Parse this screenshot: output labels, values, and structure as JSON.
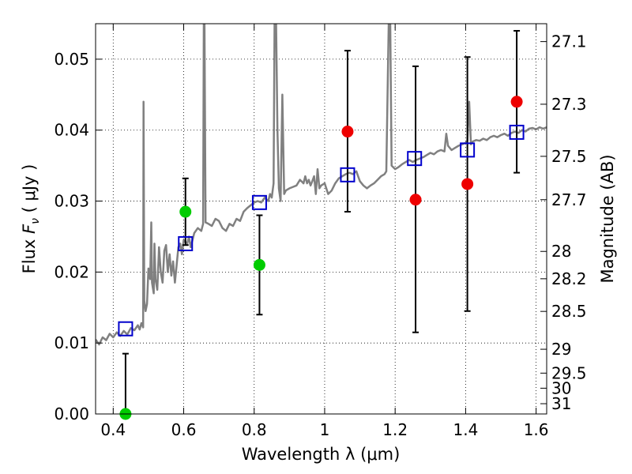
{
  "chart_data": {
    "type": "scatter",
    "xlabel": "Wavelength  λ (μm)",
    "ylabel_left": {
      "prefix": "Flux  ",
      "symbol": "F",
      "subscript": "ν",
      "suffix": "  ( μJy )"
    },
    "ylabel_right": "Magnitude (AB)",
    "xlim": [
      0.35,
      1.63
    ],
    "ylim": [
      0.0,
      0.055
    ],
    "grid": true,
    "x_ticks": [
      {
        "value": 0.4,
        "label": "0.4"
      },
      {
        "value": 0.6,
        "label": "0.6"
      },
      {
        "value": 0.8,
        "label": "0.8"
      },
      {
        "value": 1.0,
        "label": "1"
      },
      {
        "value": 1.2,
        "label": "1.2"
      },
      {
        "value": 1.4,
        "label": "1.4"
      },
      {
        "value": 1.6,
        "label": "1.6"
      }
    ],
    "y_ticks": [
      {
        "value": 0.0,
        "label": "0.00"
      },
      {
        "value": 0.01,
        "label": "0.01"
      },
      {
        "value": 0.02,
        "label": "0.02"
      },
      {
        "value": 0.03,
        "label": "0.03"
      },
      {
        "value": 0.04,
        "label": "0.04"
      },
      {
        "value": 0.05,
        "label": "0.05"
      }
    ],
    "mag_ticks": [
      {
        "value": 27.1,
        "label": "27.1"
      },
      {
        "value": 27.3,
        "label": "27.3"
      },
      {
        "value": 27.5,
        "label": "27.5"
      },
      {
        "value": 27.7,
        "label": "27.7"
      },
      {
        "value": 28.0,
        "label": "28"
      },
      {
        "value": 28.2,
        "label": "28.2"
      },
      {
        "value": 28.5,
        "label": "28.5"
      },
      {
        "value": 29.0,
        "label": "29"
      },
      {
        "value": 29.5,
        "label": "29.5"
      },
      {
        "value": 30.0,
        "label": "30"
      },
      {
        "value": 31.0,
        "label": "31"
      }
    ],
    "series": [
      {
        "color": "#808080",
        "style": "line",
        "points": [
          [
            0.35,
            0.0105
          ],
          [
            0.36,
            0.0098
          ],
          [
            0.37,
            0.0108
          ],
          [
            0.38,
            0.0104
          ],
          [
            0.39,
            0.0113
          ],
          [
            0.4,
            0.0108
          ],
          [
            0.41,
            0.0115
          ],
          [
            0.42,
            0.011
          ],
          [
            0.43,
            0.0117
          ],
          [
            0.44,
            0.0112
          ],
          [
            0.45,
            0.0121
          ],
          [
            0.46,
            0.0118
          ],
          [
            0.47,
            0.0125
          ],
          [
            0.475,
            0.0119
          ],
          [
            0.48,
            0.0128
          ],
          [
            0.485,
            0.0122
          ],
          [
            0.486,
            0.044
          ],
          [
            0.488,
            0.016
          ],
          [
            0.492,
            0.0145
          ],
          [
            0.496,
            0.0155
          ],
          [
            0.5,
            0.0205
          ],
          [
            0.505,
            0.019
          ],
          [
            0.508,
            0.027
          ],
          [
            0.51,
            0.0185
          ],
          [
            0.515,
            0.017
          ],
          [
            0.517,
            0.024
          ],
          [
            0.52,
            0.019
          ],
          [
            0.525,
            0.0175
          ],
          [
            0.53,
            0.0235
          ],
          [
            0.535,
            0.02
          ],
          [
            0.54,
            0.0185
          ],
          [
            0.545,
            0.023
          ],
          [
            0.55,
            0.0238
          ],
          [
            0.555,
            0.02
          ],
          [
            0.56,
            0.0225
          ],
          [
            0.565,
            0.0195
          ],
          [
            0.57,
            0.0215
          ],
          [
            0.575,
            0.0185
          ],
          [
            0.58,
            0.021
          ],
          [
            0.585,
            0.0235
          ],
          [
            0.59,
            0.024
          ],
          [
            0.595,
            0.0225
          ],
          [
            0.6,
            0.0245
          ],
          [
            0.61,
            0.024
          ],
          [
            0.615,
            0.025
          ],
          [
            0.62,
            0.0235
          ],
          [
            0.63,
            0.0255
          ],
          [
            0.64,
            0.0262
          ],
          [
            0.65,
            0.0258
          ],
          [
            0.655,
            0.0268
          ],
          [
            0.657,
            0.056
          ],
          [
            0.659,
            0.056
          ],
          [
            0.662,
            0.027
          ],
          [
            0.67,
            0.0268
          ],
          [
            0.68,
            0.0265
          ],
          [
            0.69,
            0.0275
          ],
          [
            0.7,
            0.0272
          ],
          [
            0.71,
            0.0262
          ],
          [
            0.72,
            0.0258
          ],
          [
            0.73,
            0.0268
          ],
          [
            0.74,
            0.0265
          ],
          [
            0.75,
            0.0275
          ],
          [
            0.76,
            0.0272
          ],
          [
            0.77,
            0.0285
          ],
          [
            0.78,
            0.029
          ],
          [
            0.79,
            0.0294
          ],
          [
            0.8,
            0.0298
          ],
          [
            0.81,
            0.03
          ],
          [
            0.82,
            0.0298
          ],
          [
            0.83,
            0.0305
          ],
          [
            0.84,
            0.03
          ],
          [
            0.845,
            0.031
          ],
          [
            0.85,
            0.0305
          ],
          [
            0.855,
            0.0325
          ],
          [
            0.858,
            0.056
          ],
          [
            0.862,
            0.056
          ],
          [
            0.866,
            0.04
          ],
          [
            0.87,
            0.0318
          ],
          [
            0.875,
            0.03
          ],
          [
            0.88,
            0.045
          ],
          [
            0.885,
            0.031
          ],
          [
            0.89,
            0.0315
          ],
          [
            0.9,
            0.0318
          ],
          [
            0.91,
            0.032
          ],
          [
            0.92,
            0.0322
          ],
          [
            0.93,
            0.033
          ],
          [
            0.94,
            0.0325
          ],
          [
            0.945,
            0.0335
          ],
          [
            0.95,
            0.0325
          ],
          [
            0.955,
            0.033
          ],
          [
            0.96,
            0.0322
          ],
          [
            0.965,
            0.0328
          ],
          [
            0.97,
            0.0335
          ],
          [
            0.975,
            0.031
          ],
          [
            0.98,
            0.0345
          ],
          [
            0.985,
            0.0318
          ],
          [
            0.99,
            0.0322
          ],
          [
            1.0,
            0.0325
          ],
          [
            1.01,
            0.031
          ],
          [
            1.02,
            0.0315
          ],
          [
            1.03,
            0.0325
          ],
          [
            1.04,
            0.0332
          ],
          [
            1.05,
            0.0335
          ],
          [
            1.06,
            0.0338
          ],
          [
            1.07,
            0.034
          ],
          [
            1.08,
            0.0338
          ],
          [
            1.09,
            0.0342
          ],
          [
            1.095,
            0.0335
          ],
          [
            1.1,
            0.0328
          ],
          [
            1.11,
            0.0322
          ],
          [
            1.12,
            0.0318
          ],
          [
            1.13,
            0.0322
          ],
          [
            1.14,
            0.0325
          ],
          [
            1.15,
            0.033
          ],
          [
            1.16,
            0.0335
          ],
          [
            1.17,
            0.0338
          ],
          [
            1.175,
            0.0342
          ],
          [
            1.18,
            0.05
          ],
          [
            1.182,
            0.056
          ],
          [
            1.186,
            0.056
          ],
          [
            1.19,
            0.035
          ],
          [
            1.2,
            0.0345
          ],
          [
            1.21,
            0.0348
          ],
          [
            1.22,
            0.0352
          ],
          [
            1.23,
            0.0355
          ],
          [
            1.24,
            0.0358
          ],
          [
            1.25,
            0.0355
          ],
          [
            1.26,
            0.0358
          ],
          [
            1.27,
            0.036
          ],
          [
            1.28,
            0.0362
          ],
          [
            1.29,
            0.0365
          ],
          [
            1.3,
            0.0368
          ],
          [
            1.31,
            0.0366
          ],
          [
            1.32,
            0.037
          ],
          [
            1.33,
            0.0372
          ],
          [
            1.34,
            0.037
          ],
          [
            1.345,
            0.0395
          ],
          [
            1.35,
            0.0378
          ],
          [
            1.36,
            0.0372
          ],
          [
            1.37,
            0.0375
          ],
          [
            1.38,
            0.0378
          ],
          [
            1.39,
            0.038
          ],
          [
            1.4,
            0.0382
          ],
          [
            1.405,
            0.0385
          ],
          [
            1.41,
            0.044
          ],
          [
            1.415,
            0.038
          ],
          [
            1.42,
            0.0384
          ],
          [
            1.43,
            0.0386
          ],
          [
            1.44,
            0.0385
          ],
          [
            1.45,
            0.0388
          ],
          [
            1.46,
            0.0386
          ],
          [
            1.47,
            0.039
          ],
          [
            1.48,
            0.0392
          ],
          [
            1.49,
            0.039
          ],
          [
            1.5,
            0.0393
          ],
          [
            1.51,
            0.0395
          ],
          [
            1.52,
            0.0392
          ],
          [
            1.53,
            0.0396
          ],
          [
            1.54,
            0.0398
          ],
          [
            1.55,
            0.0396
          ],
          [
            1.56,
            0.04
          ],
          [
            1.57,
            0.0398
          ],
          [
            1.58,
            0.0402
          ],
          [
            1.59,
            0.0403
          ],
          [
            1.6,
            0.0401
          ],
          [
            1.61,
            0.0404
          ],
          [
            1.62,
            0.0402
          ],
          [
            1.63,
            0.0404
          ]
        ]
      },
      {
        "color": "#0000cc",
        "style": "open-square",
        "points": [
          [
            0.435,
            0.012
          ],
          [
            0.605,
            0.024
          ],
          [
            0.815,
            0.0298
          ],
          [
            1.065,
            0.0337
          ],
          [
            1.255,
            0.036
          ],
          [
            1.405,
            0.0372
          ],
          [
            1.545,
            0.0397
          ]
        ]
      },
      {
        "color": "#00cc00",
        "style": "filled-circle",
        "points": [
          [
            0.435,
            0.0
          ],
          [
            0.605,
            0.0285
          ],
          [
            0.815,
            0.021
          ]
        ]
      },
      {
        "color": "#ee0000",
        "style": "filled-circle",
        "points": [
          [
            1.065,
            0.0398
          ],
          [
            1.258,
            0.0302
          ],
          [
            1.405,
            0.0324
          ],
          [
            1.545,
            0.044
          ]
        ]
      }
    ],
    "error_bars": [
      {
        "x": 0.435,
        "y_low": 0.0,
        "y_high": 0.0085
      },
      {
        "x": 0.605,
        "y_low": 0.0238,
        "y_high": 0.0332
      },
      {
        "x": 0.815,
        "y_low": 0.014,
        "y_high": 0.028
      },
      {
        "x": 1.065,
        "y_low": 0.0285,
        "y_high": 0.0512
      },
      {
        "x": 1.258,
        "y_low": 0.0115,
        "y_high": 0.049
      },
      {
        "x": 1.405,
        "y_low": 0.0145,
        "y_high": 0.0503
      },
      {
        "x": 1.545,
        "y_low": 0.034,
        "y_high": 0.054
      }
    ]
  }
}
